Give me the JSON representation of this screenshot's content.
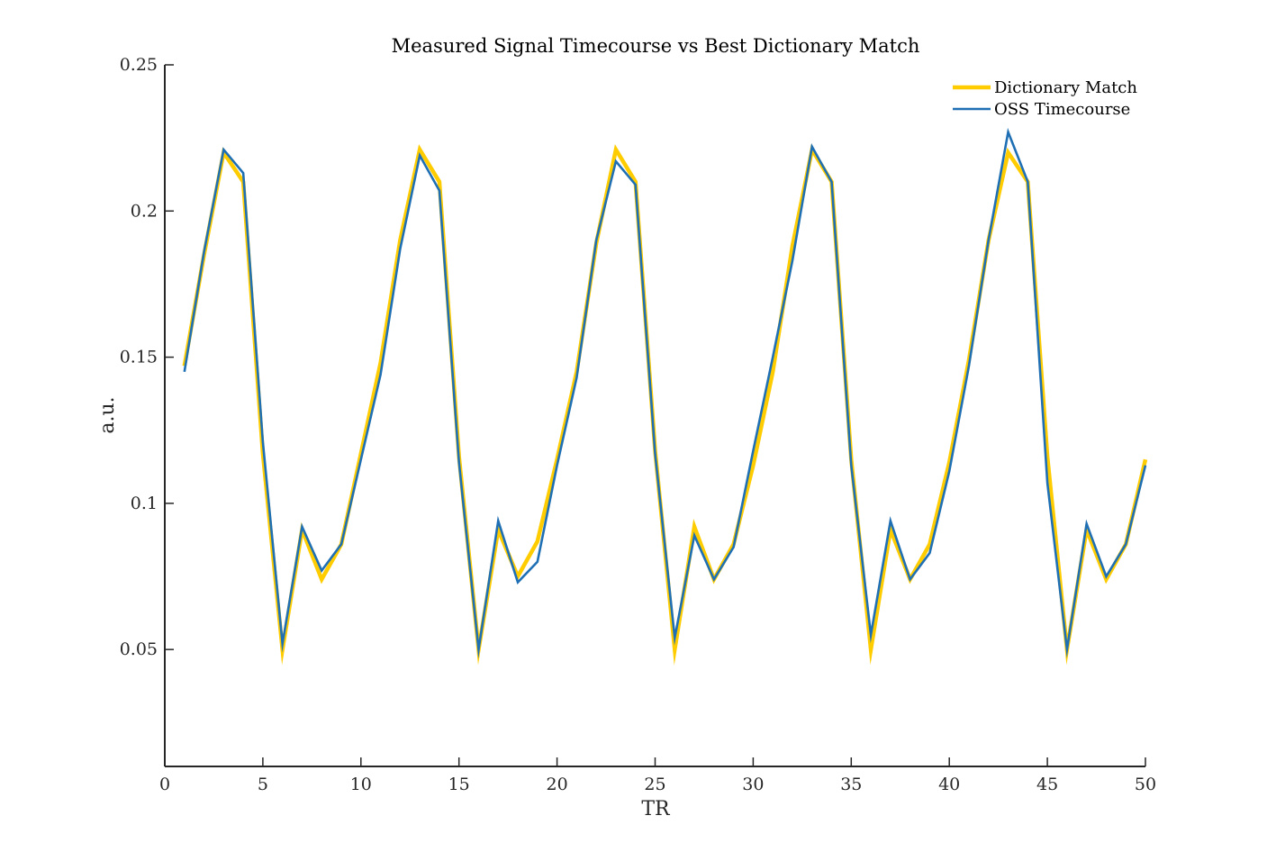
{
  "chart_data": {
    "type": "line",
    "title": "Measured Signal Timecourse vs Best Dictionary Match",
    "xlabel": "TR",
    "ylabel": "a.u.",
    "xlim": [
      0,
      50
    ],
    "ylim": [
      0.01,
      0.25
    ],
    "x_ticks": [
      0,
      5,
      10,
      15,
      20,
      25,
      30,
      35,
      40,
      45,
      50
    ],
    "x_tick_labels": [
      "0",
      "5",
      "10",
      "15",
      "20",
      "25",
      "30",
      "35",
      "40",
      "45",
      "50"
    ],
    "y_ticks": [
      0.05,
      0.1,
      0.15,
      0.2,
      0.25
    ],
    "y_tick_labels": [
      "0.05",
      "0.1",
      "0.15",
      "0.2",
      "0.25"
    ],
    "grid": false,
    "legend_position": "top-right",
    "x": [
      1,
      2,
      3,
      4,
      5,
      6,
      7,
      8,
      9,
      10,
      11,
      12,
      13,
      14,
      15,
      16,
      17,
      18,
      19,
      20,
      21,
      22,
      23,
      24,
      25,
      26,
      27,
      28,
      29,
      30,
      31,
      32,
      33,
      34,
      35,
      36,
      37,
      38,
      39,
      40,
      41,
      42,
      43,
      44,
      45,
      46,
      47,
      48,
      49,
      50
    ],
    "series": [
      {
        "name": "Dictionary Match",
        "color": "#FFCC00",
        "values": [
          0.147,
          0.185,
          0.22,
          0.21,
          0.117,
          0.05,
          0.091,
          0.074,
          0.086,
          0.117,
          0.148,
          0.19,
          0.221,
          0.21,
          0.116,
          0.05,
          0.091,
          0.075,
          0.087,
          0.115,
          0.145,
          0.189,
          0.221,
          0.21,
          0.118,
          0.05,
          0.092,
          0.074,
          0.086,
          0.113,
          0.145,
          0.188,
          0.221,
          0.21,
          0.115,
          0.05,
          0.091,
          0.074,
          0.086,
          0.114,
          0.149,
          0.19,
          0.22,
          0.21,
          0.116,
          0.05,
          0.091,
          0.074,
          0.086,
          0.115
        ]
      },
      {
        "name": "OSS Timecourse",
        "color": "#1F6FB4",
        "values": [
          0.145,
          0.186,
          0.221,
          0.213,
          0.121,
          0.052,
          0.092,
          0.077,
          0.086,
          0.115,
          0.144,
          0.187,
          0.219,
          0.207,
          0.114,
          0.05,
          0.094,
          0.073,
          0.08,
          0.113,
          0.143,
          0.19,
          0.217,
          0.209,
          0.117,
          0.054,
          0.089,
          0.074,
          0.085,
          0.118,
          0.15,
          0.183,
          0.222,
          0.21,
          0.113,
          0.055,
          0.094,
          0.074,
          0.083,
          0.111,
          0.147,
          0.19,
          0.227,
          0.21,
          0.107,
          0.05,
          0.093,
          0.075,
          0.086,
          0.113
        ]
      }
    ]
  }
}
